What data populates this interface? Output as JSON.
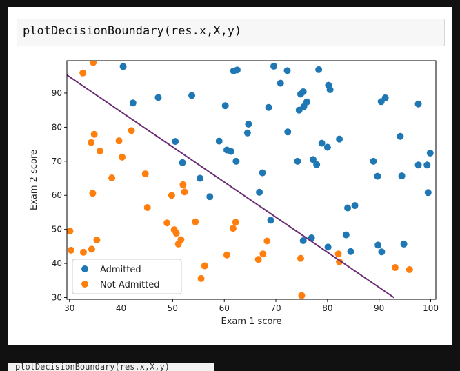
{
  "code_cell": {
    "source": "plotDecisionBoundary(res.x,X,y)"
  },
  "next_cell": {
    "fragment": "plotDecisionBoundary(res.x,X,y)"
  },
  "chart_data": {
    "type": "scatter",
    "title": "",
    "xlabel": "Exam 1 score",
    "ylabel": "Exam 2 score",
    "xlim": [
      29.5,
      101
    ],
    "ylim": [
      29.5,
      99.5
    ],
    "xticks": [
      30,
      40,
      50,
      60,
      70,
      80,
      90,
      100
    ],
    "yticks": [
      30,
      40,
      50,
      60,
      70,
      80,
      90
    ],
    "grid": false,
    "legend": {
      "placement": "lower-left"
    },
    "series": [
      {
        "name": "Admitted",
        "color": "#1f77b4",
        "points": [
          [
            40.4,
            97.8
          ],
          [
            61.8,
            96.5
          ],
          [
            62.5,
            96.8
          ],
          [
            69.6,
            97.9
          ],
          [
            72.2,
            96.6
          ],
          [
            78.3,
            96.9
          ],
          [
            42.3,
            87.1
          ],
          [
            47.2,
            88.7
          ],
          [
            53.7,
            89.3
          ],
          [
            60.2,
            86.3
          ],
          [
            70.9,
            92.9
          ],
          [
            68.6,
            85.8
          ],
          [
            74.8,
            89.7
          ],
          [
            75.3,
            90.4
          ],
          [
            80.2,
            92.3
          ],
          [
            80.5,
            91.0
          ],
          [
            76.0,
            87.4
          ],
          [
            74.5,
            85.0
          ],
          [
            75.4,
            86.0
          ],
          [
            90.4,
            87.5
          ],
          [
            91.2,
            88.6
          ],
          [
            97.6,
            86.8
          ],
          [
            64.7,
            80.9
          ],
          [
            64.5,
            78.3
          ],
          [
            72.3,
            78.6
          ],
          [
            50.5,
            75.8
          ],
          [
            59.0,
            75.9
          ],
          [
            60.5,
            73.3
          ],
          [
            61.3,
            72.9
          ],
          [
            62.3,
            70.0
          ],
          [
            51.9,
            69.6
          ],
          [
            78.9,
            75.3
          ],
          [
            80.0,
            74.1
          ],
          [
            82.3,
            76.5
          ],
          [
            94.1,
            77.3
          ],
          [
            74.2,
            70.0
          ],
          [
            77.2,
            70.5
          ],
          [
            77.9,
            69.0
          ],
          [
            88.9,
            70.0
          ],
          [
            97.6,
            68.9
          ],
          [
            99.3,
            68.9
          ],
          [
            99.9,
            72.4
          ],
          [
            67.4,
            66.6
          ],
          [
            55.3,
            65.0
          ],
          [
            57.2,
            59.6
          ],
          [
            66.8,
            60.9
          ],
          [
            89.7,
            65.6
          ],
          [
            94.4,
            65.7
          ],
          [
            99.5,
            60.8
          ],
          [
            83.9,
            56.3
          ],
          [
            85.3,
            57.0
          ],
          [
            69.0,
            52.7
          ],
          [
            83.6,
            48.4
          ],
          [
            75.3,
            46.7
          ],
          [
            76.9,
            47.5
          ],
          [
            80.1,
            44.8
          ],
          [
            84.5,
            43.5
          ],
          [
            89.8,
            45.4
          ],
          [
            90.5,
            43.4
          ],
          [
            94.8,
            45.7
          ]
        ]
      },
      {
        "name": "Not Admitted",
        "color": "#ff7f0e",
        "points": [
          [
            34.6,
            99.0
          ],
          [
            32.6,
            95.9
          ],
          [
            42.0,
            79.0
          ],
          [
            34.8,
            77.9
          ],
          [
            34.2,
            75.5
          ],
          [
            35.9,
            73.0
          ],
          [
            39.6,
            76.0
          ],
          [
            40.2,
            71.2
          ],
          [
            38.2,
            65.1
          ],
          [
            44.7,
            66.3
          ],
          [
            34.5,
            60.6
          ],
          [
            52.0,
            63.1
          ],
          [
            52.3,
            61.0
          ],
          [
            49.8,
            60.0
          ],
          [
            45.1,
            56.4
          ],
          [
            48.9,
            51.9
          ],
          [
            50.3,
            49.9
          ],
          [
            50.7,
            48.9
          ],
          [
            54.4,
            52.2
          ],
          [
            62.2,
            52.1
          ],
          [
            61.7,
            50.3
          ],
          [
            30.1,
            49.5
          ],
          [
            35.3,
            46.9
          ],
          [
            51.6,
            47.0
          ],
          [
            51.1,
            45.7
          ],
          [
            30.3,
            43.9
          ],
          [
            32.7,
            43.3
          ],
          [
            34.3,
            44.2
          ],
          [
            56.2,
            39.3
          ],
          [
            60.5,
            42.5
          ],
          [
            68.3,
            46.6
          ],
          [
            67.5,
            42.8
          ],
          [
            66.6,
            41.2
          ],
          [
            74.8,
            41.5
          ],
          [
            82.1,
            42.8
          ],
          [
            82.3,
            40.5
          ],
          [
            55.5,
            35.6
          ],
          [
            75.0,
            30.6
          ],
          [
            93.1,
            38.8
          ],
          [
            95.9,
            38.2
          ]
        ]
      },
      {
        "name": "",
        "type": "line",
        "color": "#6b2c74",
        "points": [
          [
            29.5,
            95.3
          ],
          [
            92.9,
            30.0
          ]
        ]
      }
    ]
  }
}
